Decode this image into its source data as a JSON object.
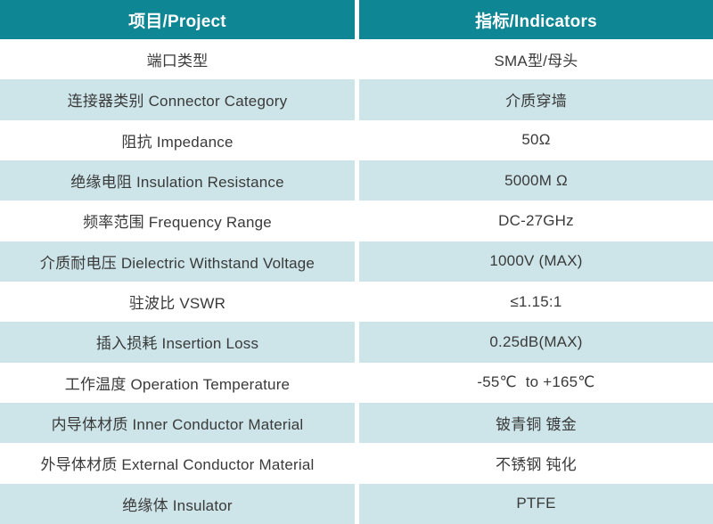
{
  "table": {
    "header": {
      "project": "项目/Project",
      "indicators": "指标/Indicators"
    },
    "rows": [
      {
        "project": "端口类型",
        "indicator": "SMA型/母头"
      },
      {
        "project": "连接器类别 Connector Category",
        "indicator": "介质穿墙"
      },
      {
        "project": "阻抗 Impedance",
        "indicator": "50Ω"
      },
      {
        "project": "绝缘电阻 Insulation Resistance",
        "indicator": "5000M Ω"
      },
      {
        "project": "频率范围 Frequency Range",
        "indicator": "DC-27GHz"
      },
      {
        "project": "介质耐电压 Dielectric Withstand Voltage",
        "indicator": "1000V (MAX)"
      },
      {
        "project": "驻波比 VSWR",
        "indicator": "≤1.15:1"
      },
      {
        "project": "插入损耗 Insertion Loss",
        "indicator": "0.25dB(MAX)"
      },
      {
        "project": "工作温度 Operation Temperature",
        "indicator": "-55℃  to +165℃"
      },
      {
        "project": "内导体材质 Inner Conductor Material",
        "indicator": "铍青铜 镀金"
      },
      {
        "project": "外导体材质 External Conductor Material",
        "indicator": "不锈钢 钝化"
      },
      {
        "project": "绝缘体 Insulator",
        "indicator": "PTFE"
      }
    ],
    "colors": {
      "header_bg": "#0e8694",
      "row_bg": "#ffffff",
      "row_alt_bg": "#cde5e9",
      "header_text": "#ffffff",
      "body_text": "#3a3a3a"
    }
  }
}
